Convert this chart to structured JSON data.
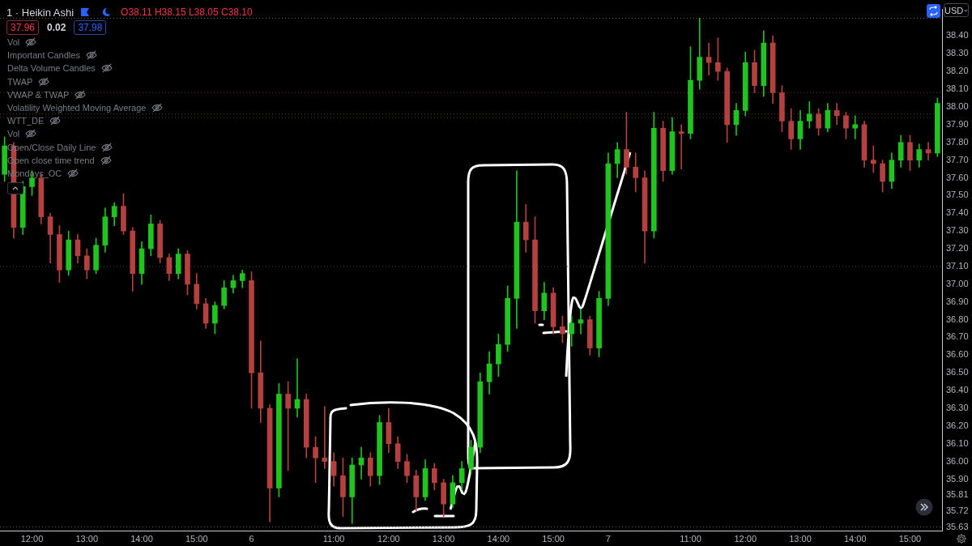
{
  "chart_data": {
    "type": "candlestick",
    "title": "1 · Heikin Ashi",
    "subtitle": "O38.11 H38.15 L38.05 C38.10",
    "ylabel": "USD",
    "annotations": [
      "37.96",
      "0.02",
      "37.98",
      "Vol",
      "Important Candles",
      "Delta Volume Candles",
      "TWAP",
      "VWAP & TWAP",
      "Volatility Weighted Moving Average",
      "WTT_DE",
      "Vol",
      "Open/Close Daily Line",
      "Open close time trend",
      "Mondays_OC"
    ],
    "categories": [
      null,
      null,
      null,
      "12:00",
      null,
      null,
      null,
      null,
      null,
      "13:00",
      null,
      null,
      null,
      null,
      null,
      "14:00",
      null,
      null,
      null,
      null,
      null,
      "15:00",
      null,
      null,
      null,
      null,
      null,
      "6",
      null,
      null,
      null,
      null,
      null,
      null,
      null,
      null,
      "11:00",
      null,
      null,
      null,
      null,
      null,
      "12:00",
      null,
      null,
      null,
      null,
      null,
      "13:00",
      null,
      null,
      null,
      null,
      null,
      "14:00",
      null,
      null,
      null,
      null,
      null,
      "15:00",
      null,
      null,
      null,
      null,
      null,
      "7",
      null,
      null,
      null,
      null,
      null,
      null,
      null,
      null,
      "11:00",
      null,
      null,
      null,
      null,
      null,
      "12:00",
      null,
      null,
      null,
      null,
      null,
      "13:00",
      null,
      null,
      null,
      null,
      null,
      "14:00",
      null,
      null,
      null,
      null,
      null,
      "15:00",
      null,
      null,
      null
    ],
    "ohlc": [
      [
        37.62,
        37.83,
        37.58,
        37.78
      ],
      [
        37.78,
        37.8,
        37.26,
        37.32
      ],
      [
        37.32,
        37.58,
        37.28,
        37.55
      ],
      [
        37.55,
        37.64,
        37.5,
        37.6
      ],
      [
        37.6,
        37.62,
        37.34,
        37.38
      ],
      [
        37.38,
        37.4,
        37.12,
        37.28
      ],
      [
        37.28,
        37.33,
        37.01,
        37.08
      ],
      [
        37.08,
        37.3,
        37.05,
        37.25
      ],
      [
        37.25,
        37.28,
        37.12,
        37.16
      ],
      [
        37.16,
        37.2,
        37.03,
        37.08
      ],
      [
        37.08,
        37.26,
        37.06,
        37.22
      ],
      [
        37.22,
        37.43,
        37.18,
        37.38
      ],
      [
        37.38,
        37.46,
        37.33,
        37.44
      ],
      [
        37.44,
        37.51,
        37.28,
        37.3
      ],
      [
        37.3,
        37.32,
        36.96,
        37.06
      ],
      [
        37.06,
        37.24,
        37.0,
        37.2
      ],
      [
        37.2,
        37.39,
        37.16,
        37.34
      ],
      [
        37.34,
        37.36,
        37.12,
        37.15
      ],
      [
        37.15,
        37.17,
        37.02,
        37.06
      ],
      [
        37.06,
        37.2,
        37.03,
        37.17
      ],
      [
        37.17,
        37.19,
        36.94,
        37.0
      ],
      [
        37.0,
        37.06,
        36.86,
        36.89
      ],
      [
        36.89,
        36.92,
        36.75,
        36.78
      ],
      [
        36.78,
        36.9,
        36.72,
        36.88
      ],
      [
        36.88,
        37.02,
        36.86,
        36.98
      ],
      [
        36.98,
        37.05,
        36.95,
        37.02
      ],
      [
        37.02,
        37.08,
        36.98,
        37.06
      ],
      [
        37.02,
        37.07,
        36.3,
        36.5
      ],
      [
        36.5,
        36.68,
        36.22,
        36.3
      ],
      [
        36.3,
        36.32,
        35.66,
        35.85
      ],
      [
        35.85,
        36.44,
        35.8,
        36.38
      ],
      [
        36.38,
        36.45,
        35.95,
        36.3
      ],
      [
        36.3,
        36.58,
        36.25,
        36.35
      ],
      [
        36.35,
        36.38,
        36.02,
        36.08
      ],
      [
        36.08,
        36.14,
        35.88,
        36.02
      ],
      [
        36.02,
        36.31,
        35.96,
        36.0
      ],
      [
        36.0,
        36.05,
        35.86,
        35.92
      ],
      [
        35.92,
        36.02,
        35.69,
        35.8
      ],
      [
        35.8,
        36.02,
        35.65,
        35.98
      ],
      [
        35.98,
        36.08,
        35.9,
        36.02
      ],
      [
        36.02,
        36.05,
        35.86,
        35.92
      ],
      [
        35.92,
        36.26,
        35.87,
        36.22
      ],
      [
        36.22,
        36.3,
        36.05,
        36.1
      ],
      [
        36.1,
        36.14,
        35.96,
        36.0
      ],
      [
        36.0,
        36.04,
        35.88,
        35.92
      ],
      [
        35.92,
        35.95,
        35.72,
        35.8
      ],
      [
        35.8,
        36.01,
        35.78,
        35.96
      ],
      [
        35.96,
        35.99,
        35.84,
        35.88
      ],
      [
        35.88,
        35.9,
        35.69,
        35.76
      ],
      [
        35.76,
        35.92,
        35.74,
        35.88
      ],
      [
        35.88,
        36.0,
        35.84,
        35.96
      ],
      [
        35.96,
        36.12,
        35.93,
        36.08
      ],
      [
        36.08,
        36.5,
        36.05,
        36.45
      ],
      [
        36.45,
        36.62,
        36.38,
        36.55
      ],
      [
        36.55,
        36.72,
        36.48,
        36.66
      ],
      [
        36.66,
        36.99,
        36.62,
        36.92
      ],
      [
        36.92,
        37.64,
        36.75,
        37.35
      ],
      [
        37.35,
        37.45,
        37.18,
        37.25
      ],
      [
        37.25,
        37.38,
        36.78,
        36.85
      ],
      [
        36.85,
        37.01,
        36.8,
        36.95
      ],
      [
        36.95,
        36.98,
        36.72,
        36.76
      ],
      [
        36.76,
        36.82,
        36.67,
        36.72
      ],
      [
        36.72,
        36.82,
        36.65,
        36.78
      ],
      [
        36.78,
        36.86,
        36.72,
        36.8
      ],
      [
        36.8,
        36.82,
        36.6,
        36.64
      ],
      [
        36.64,
        36.96,
        36.59,
        36.92
      ],
      [
        36.92,
        37.74,
        36.88,
        37.68
      ],
      [
        37.68,
        37.8,
        37.6,
        37.76
      ],
      [
        37.76,
        37.97,
        37.62,
        37.66
      ],
      [
        37.66,
        37.74,
        37.52,
        37.6
      ],
      [
        37.6,
        37.64,
        37.12,
        37.3
      ],
      [
        37.3,
        37.97,
        37.26,
        37.88
      ],
      [
        37.88,
        37.92,
        37.58,
        37.64
      ],
      [
        37.64,
        37.94,
        37.62,
        37.86
      ],
      [
        37.86,
        37.9,
        37.65,
        37.85
      ],
      [
        37.85,
        38.34,
        37.82,
        38.15
      ],
      [
        38.15,
        38.5,
        38.1,
        38.28
      ],
      [
        38.28,
        38.36,
        38.18,
        38.25
      ],
      [
        38.25,
        38.39,
        38.15,
        38.2
      ],
      [
        38.2,
        38.22,
        37.8,
        37.9
      ],
      [
        37.9,
        38.02,
        37.84,
        37.98
      ],
      [
        37.98,
        38.31,
        37.95,
        38.25
      ],
      [
        38.25,
        38.32,
        38.08,
        38.12
      ],
      [
        38.12,
        38.43,
        38.06,
        38.36
      ],
      [
        38.36,
        38.4,
        38.02,
        38.08
      ],
      [
        38.08,
        38.12,
        37.86,
        37.92
      ],
      [
        37.92,
        37.99,
        37.76,
        37.82
      ],
      [
        37.82,
        37.98,
        37.76,
        37.92
      ],
      [
        37.92,
        38.03,
        37.88,
        37.96
      ],
      [
        37.96,
        37.99,
        37.84,
        37.88
      ],
      [
        37.88,
        38.02,
        37.86,
        37.98
      ],
      [
        37.98,
        38.02,
        37.9,
        37.95
      ],
      [
        37.95,
        37.97,
        37.82,
        37.88
      ],
      [
        37.88,
        37.95,
        37.82,
        37.9
      ],
      [
        37.9,
        37.92,
        37.66,
        37.7
      ],
      [
        37.7,
        37.78,
        37.63,
        37.68
      ],
      [
        37.68,
        37.7,
        37.52,
        37.58
      ],
      [
        37.58,
        37.74,
        37.54,
        37.7
      ],
      [
        37.7,
        37.84,
        37.66,
        37.8
      ],
      [
        37.8,
        37.84,
        37.64,
        37.7
      ],
      [
        37.7,
        37.79,
        37.66,
        37.76
      ],
      [
        37.76,
        37.8,
        37.7,
        37.74
      ],
      [
        37.74,
        38.05,
        37.72,
        38.02
      ]
    ],
    "colors": [
      "#1fc41f",
      "#b4413f",
      "#1fc41f",
      "#1fc41f",
      "#b4413f",
      "#b4413f",
      "#b4413f",
      "#1fc41f",
      "#b4413f",
      "#b4413f",
      "#1fc41f",
      "#1fc41f",
      "#1fc41f",
      "#b4413f",
      "#b4413f",
      "#1fc41f",
      "#1fc41f",
      "#b4413f",
      "#b4413f",
      "#1fc41f",
      "#b4413f",
      "#b4413f",
      "#b4413f",
      "#1fc41f",
      "#1fc41f",
      "#1fc41f",
      "#1fc41f",
      "#b4413f",
      "#b4413f",
      "#b4413f",
      "#1fc41f",
      "#b4413f",
      "#1fc41f",
      "#b4413f",
      "#b4413f",
      "#b4413f",
      "#b4413f",
      "#b4413f",
      "#1fc41f",
      "#1fc41f",
      "#b4413f",
      "#1fc41f",
      "#b4413f",
      "#b4413f",
      "#b4413f",
      "#b4413f",
      "#1fc41f",
      "#b4413f",
      "#b4413f",
      "#1fc41f",
      "#1fc41f",
      "#1fc41f",
      "#1fc41f",
      "#1fc41f",
      "#1fc41f",
      "#1fc41f",
      "#1fc41f",
      "#b4413f",
      "#b4413f",
      "#1fc41f",
      "#b4413f",
      "#b4413f",
      "#1fc41f",
      "#1fc41f",
      "#b4413f",
      "#1fc41f",
      "#1fc41f",
      "#1fc41f",
      "#b4413f",
      "#b4413f",
      "#b4413f",
      "#1fc41f",
      "#b4413f",
      "#1fc41f",
      "#b4413f",
      "#1fc41f",
      "#1fc41f",
      "#b4413f",
      "#b4413f",
      "#b4413f",
      "#1fc41f",
      "#1fc41f",
      "#b4413f",
      "#1fc41f",
      "#b4413f",
      "#b4413f",
      "#b4413f",
      "#1fc41f",
      "#1fc41f",
      "#b4413f",
      "#1fc41f",
      "#b4413f",
      "#b4413f",
      "#1fc41f",
      "#b4413f",
      "#b4413f",
      "#b4413f",
      "#1fc41f",
      "#1fc41f",
      "#b4413f",
      "#1fc41f",
      "#b4413f",
      "#1fc41f"
    ],
    "ylim": [
      35.61,
      38.55
    ],
    "yticks": [
      {
        "value": 38.4,
        "label": "38.40"
      },
      {
        "value": 38.3,
        "label": "38.30"
      },
      {
        "value": 38.2,
        "label": "38.20"
      },
      {
        "value": 38.1,
        "label": "38.10"
      },
      {
        "value": 38.0,
        "label": "38.00"
      },
      {
        "value": 37.9,
        "label": "37.90"
      },
      {
        "value": 37.8,
        "label": "37.80"
      },
      {
        "value": 37.7,
        "label": "37.70"
      },
      {
        "value": 37.6,
        "label": "37.60"
      },
      {
        "value": 37.5,
        "label": "37.50"
      },
      {
        "value": 37.4,
        "label": "37.40"
      },
      {
        "value": 37.3,
        "label": "37.30"
      },
      {
        "value": 37.2,
        "label": "37.20"
      },
      {
        "value": 37.1,
        "label": "37.10"
      },
      {
        "value": 37.0,
        "label": "37.00"
      },
      {
        "value": 36.9,
        "label": "36.90"
      },
      {
        "value": 36.8,
        "label": "36.80"
      },
      {
        "value": 36.7,
        "label": "36.70"
      },
      {
        "value": 36.6,
        "label": "36.60"
      },
      {
        "value": 36.5,
        "label": "36.50"
      },
      {
        "value": 36.4,
        "label": "36.40"
      },
      {
        "value": 36.3,
        "label": "36.30"
      },
      {
        "value": 36.2,
        "label": "36.20"
      },
      {
        "value": 36.1,
        "label": "36.10"
      },
      {
        "value": 36.0,
        "label": "36.00"
      },
      {
        "value": 35.9,
        "label": "35.90"
      },
      35.81,
      35.72,
      35.63
    ],
    "ref_lines": [
      {
        "axis": "y",
        "value": 38.5,
        "color": "#5d606b",
        "line_style": "dotted"
      },
      {
        "axis": "y",
        "value": 38.08,
        "color": "#7a2b2b",
        "line_style": "dotted"
      },
      {
        "axis": "y",
        "value": 37.96,
        "color": "#7a3a2a",
        "line_style": "dotted"
      },
      {
        "axis": "y",
        "value": 37.94,
        "color": "#34485a",
        "line_style": "dotted"
      },
      {
        "axis": "y",
        "value": 37.1,
        "color": "#4a4a4a",
        "line_style": "dotted"
      },
      {
        "axis": "y",
        "value": 35.63,
        "color": "#5d606b",
        "line_style": "dotted"
      }
    ],
    "grid": false
  }
}
